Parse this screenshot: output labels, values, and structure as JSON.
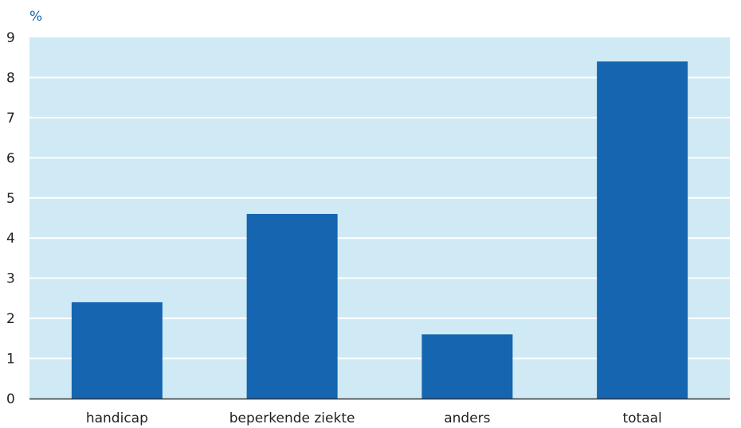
{
  "chart_data": {
    "type": "bar",
    "unit_label": "%",
    "categories": [
      "handicap",
      "beperkende ziekte",
      "anders",
      "totaal"
    ],
    "values": [
      2.4,
      4.6,
      1.6,
      8.4
    ],
    "ylim": [
      0,
      9
    ],
    "yticks": [
      0,
      1,
      2,
      3,
      4,
      5,
      6,
      7,
      8,
      9
    ],
    "grid": true,
    "colors": {
      "bar": "#1565b0",
      "plot_background": "#cfeaf5",
      "gridline": "#ffffff",
      "axis": "#333333",
      "unit_label": "#1565b0"
    }
  }
}
